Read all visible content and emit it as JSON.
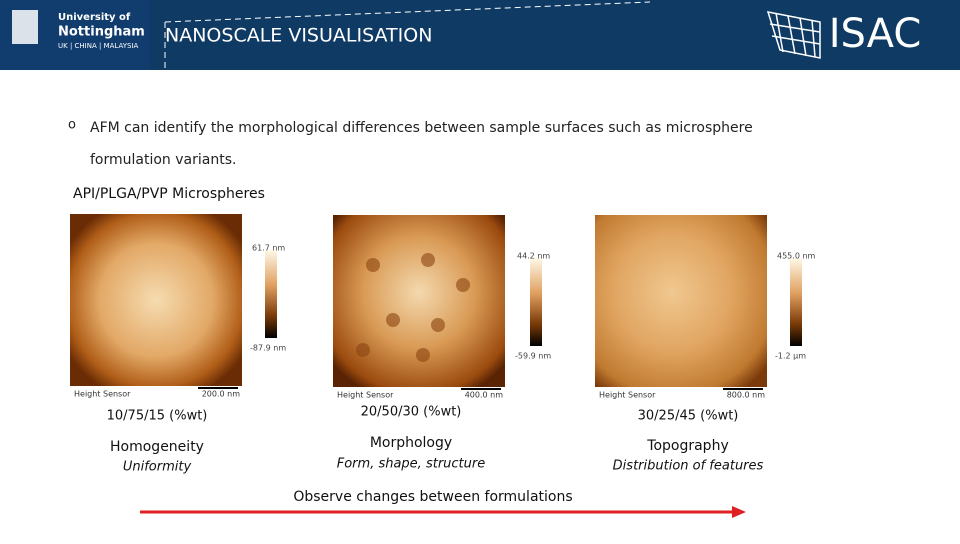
{
  "header": {
    "university": [
      "University of",
      "Nottingham",
      "UK | CHINA | MALAYSIA"
    ],
    "title": "NANOSCALE VISUALISATION",
    "logo": "ISAC"
  },
  "bullet": "AFM can identify the morphological differences between sample surfaces such as microsphere formulation variants.",
  "heading": "API/PLGA/PVP Microspheres",
  "panels": [
    {
      "max": "61.7 nm",
      "min": "-87.9 nm",
      "sensor": "Height Sensor",
      "scale": "200.0 nm",
      "composition": "10/75/15 (%wt)",
      "property": "Homogeneity",
      "description": "Uniformity"
    },
    {
      "max": "44.2 nm",
      "min": "-59.9 nm",
      "sensor": "Height Sensor",
      "scale": "400.0 nm",
      "composition": "20/50/30 (%wt)",
      "property": "Morphology",
      "description": "Form, shape, structure"
    },
    {
      "max": "455.0 nm",
      "min": "-1.2 µm",
      "sensor": "Height Sensor",
      "scale": "800.0 nm",
      "composition": "30/25/45 (%wt)",
      "property": "Topography",
      "description": "Distribution of features"
    }
  ],
  "footer": "Observe changes between formulations"
}
